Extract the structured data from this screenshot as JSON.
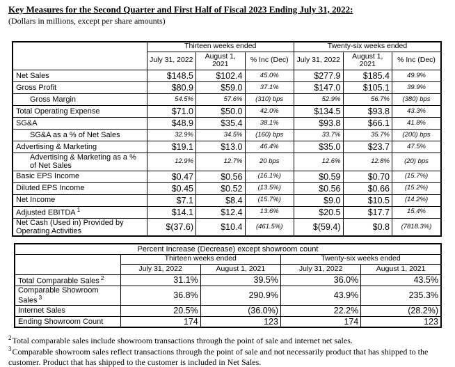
{
  "title": "Key Measures for the Second Quarter and First Half of Fiscal 2023 Ending July 31, 2022:",
  "subtitle": "(Dollars in millions, except per share amounts)",
  "key_measures_table": {
    "group_headers": [
      "Thirteen weeks ended",
      "Twenty-six weeks ended"
    ],
    "column_headers": [
      "July 31, 2022",
      "August 1, 2021",
      "% Inc (Dec)",
      "July 31, 2022",
      "August 1, 2021",
      "% Inc (Dec)"
    ],
    "rows": [
      {
        "label": "Net Sales",
        "values": [
          "$148.5",
          "$102.4",
          "45.0%",
          "$277.9",
          "$185.4",
          "49.9%"
        ]
      },
      {
        "label": "Gross Profit",
        "values": [
          "$80.9",
          "$59.0",
          "37.1%",
          "$147.0",
          "$105.1",
          "39.9%"
        ]
      },
      {
        "label": "Gross Margin",
        "indent": true,
        "italic": true,
        "values": [
          "54.5%",
          "57.6%",
          "(310) bps",
          "52.9%",
          "56.7%",
          "(380) bps"
        ]
      },
      {
        "label": "Total Operating Expense",
        "values": [
          "$71.0",
          "$50.0",
          "42.0%",
          "$134.5",
          "$93.8",
          "43.3%"
        ]
      },
      {
        "label": "SG&A",
        "values": [
          "$48.9",
          "$35.4",
          "38.1%",
          "$93.8",
          "$66.1",
          "41.8%"
        ]
      },
      {
        "label": "SG&A as a % of Net Sales",
        "indent": true,
        "italic": true,
        "values": [
          "32.9%",
          "34.5%",
          "(160) bps",
          "33.7%",
          "35.7%",
          "(200) bps"
        ]
      },
      {
        "label": "Advertising & Marketing",
        "values": [
          "$19.1",
          "$13.0",
          "46.4%",
          "$35.0",
          "$23.7",
          "47.5%"
        ]
      },
      {
        "label": "Advertising & Marketing as a % of Net Sales",
        "indent": true,
        "italic": true,
        "values": [
          "12.9%",
          "12.7%",
          "20 bps",
          "12.6%",
          "12.8%",
          "(20) bps"
        ]
      },
      {
        "label": "Basic EPS Income",
        "values": [
          "$0.47",
          "$0.56",
          "(16.1%)",
          "$0.59",
          "$0.70",
          "(15.7%)"
        ]
      },
      {
        "label": "Diluted EPS Income",
        "values": [
          "$0.45",
          "$0.52",
          "(13.5%)",
          "$0.56",
          "$0.66",
          "(15.2%)"
        ]
      },
      {
        "label": "Net Income",
        "values": [
          "$7.1",
          "$8.4",
          "(15.7%)",
          "$9.0",
          "$10.5",
          "(14.2%)"
        ]
      },
      {
        "label": "Adjusted EBITDA",
        "sup": "1",
        "values": [
          "$14.1",
          "$12.4",
          "13.6%",
          "$20.5",
          "$17.7",
          "15.4%"
        ]
      },
      {
        "label": "Net Cash (Used in) Provided by Operating Activities",
        "values": [
          "$(37.6)",
          "$10.4",
          "(461.5%)",
          "$(59.4)",
          "$0.8",
          "(7818.3%)"
        ]
      }
    ]
  },
  "comparable_table": {
    "title": "Percent Increase (Decrease) except showroom count",
    "group_headers": [
      "Thirteen weeks ended",
      "Twenty-six weeks ended"
    ],
    "column_headers": [
      "July 31, 2022",
      "August 1, 2021",
      "July 31, 2022",
      "August 1, 2021"
    ],
    "rows": [
      {
        "label": "Total Comparable Sales",
        "sup": "2",
        "values": [
          "31.1%",
          "39.5%",
          "36.0%",
          "43.5%"
        ]
      },
      {
        "label": "Comparable Showroom Sales",
        "sup": "3",
        "values": [
          "36.8%",
          "290.9%",
          "43.9%",
          "235.3%"
        ]
      },
      {
        "label": "Internet Sales",
        "values": [
          "20.5%",
          "(36.0%)",
          "22.2%",
          "(28.2%)"
        ]
      },
      {
        "label": "Ending Showroom Count",
        "values": [
          "174",
          "123",
          "174",
          "123"
        ]
      }
    ]
  },
  "footnotes": [
    {
      "sup": "2",
      "text": "Total comparable sales include showroom transactions through the point of sale and internet net sales."
    },
    {
      "sup": "3",
      "text": "Comparable showroom sales reflect transactions through the point of sale and not necessarily product that has shipped to the customer. Product that has shipped to the customer is included in Net Sales."
    }
  ]
}
